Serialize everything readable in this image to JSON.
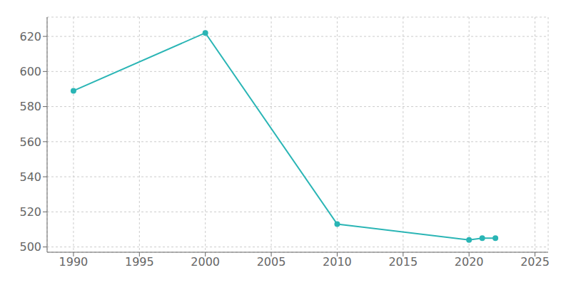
{
  "chart_data": {
    "type": "line",
    "x": [
      1990,
      2000,
      2010,
      2020,
      2021,
      2022
    ],
    "values": [
      589,
      622,
      513,
      504,
      505,
      505
    ],
    "color": "#2ab5b5",
    "marker": "circle",
    "xlim": [
      1988,
      2026
    ],
    "ylim": [
      497,
      631
    ],
    "xticks": [
      1990,
      1995,
      2000,
      2005,
      2010,
      2015,
      2020,
      2025
    ],
    "yticks": [
      500,
      520,
      540,
      560,
      580,
      600,
      620
    ],
    "grid": true
  }
}
